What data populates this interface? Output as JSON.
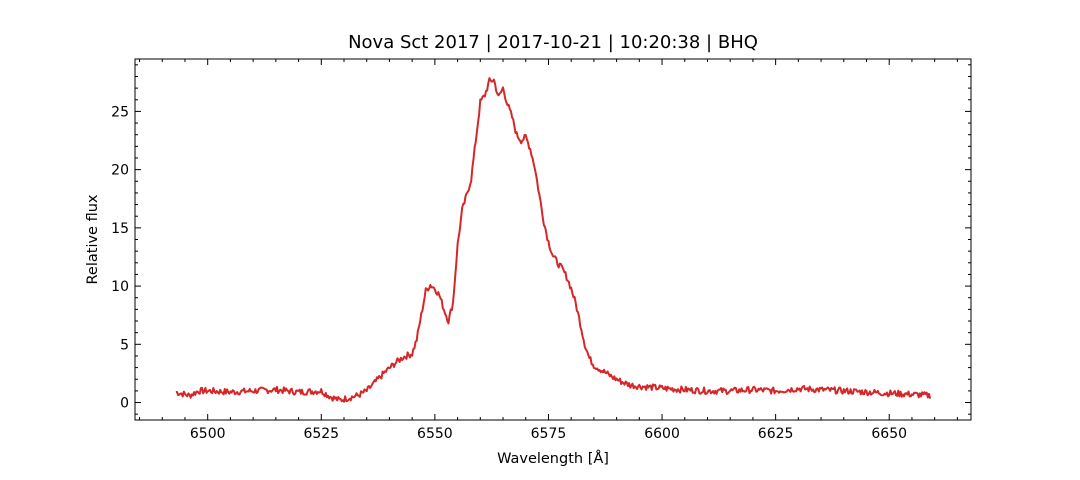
{
  "chart_data": {
    "type": "line",
    "title": "Nova Sct 2017 | 2017-10-21 | 10:20:38 | BHQ",
    "xlabel": "Wavelength [Å]",
    "ylabel": "Relative flux",
    "xlim": [
      6484,
      6668
    ],
    "ylim": [
      -1.5,
      29.5
    ],
    "xticks": [
      6500,
      6525,
      6550,
      6575,
      6600,
      6625,
      6650
    ],
    "yticks": [
      0,
      5,
      10,
      15,
      20,
      25
    ],
    "grid": false,
    "legend": "none",
    "series": [
      {
        "color": "#d62728",
        "x": [
          6493.0,
          6496,
          6498,
          6500,
          6505,
          6510,
          6515,
          6520,
          6525,
          6527,
          6529,
          6531,
          6533,
          6535,
          6537,
          6539,
          6541,
          6543,
          6545,
          6546,
          6547,
          6548,
          6549,
          6550,
          6551,
          6552,
          6553,
          6554,
          6555,
          6556,
          6557,
          6558,
          6559,
          6560,
          6561,
          6562,
          6563,
          6564,
          6565,
          6566,
          6567,
          6568,
          6569,
          6570,
          6571,
          6572,
          6573,
          6574,
          6575,
          6576,
          6577,
          6578,
          6579,
          6580,
          6581,
          6582,
          6583,
          6584,
          6585,
          6587,
          6589,
          6591,
          6593,
          6595,
          6598,
          6601,
          6605,
          6610,
          6615,
          6620,
          6625,
          6630,
          6635,
          6640,
          6645,
          6650,
          6655,
          6659
        ],
        "values": [
          0.9,
          0.6,
          1.0,
          1.0,
          0.9,
          1.0,
          1.1,
          0.9,
          1.0,
          0.5,
          0.2,
          0.4,
          0.6,
          1.0,
          1.8,
          2.6,
          3.3,
          3.9,
          4.2,
          5.4,
          7.5,
          9.6,
          10.1,
          9.8,
          9.2,
          8.0,
          7.0,
          8.6,
          13.5,
          16.5,
          17.8,
          19.2,
          22.5,
          25.8,
          26.4,
          27.6,
          27.7,
          26.2,
          27.0,
          25.6,
          24.5,
          23.0,
          22.5,
          22.8,
          21.8,
          20.2,
          17.8,
          15.5,
          13.8,
          12.6,
          12.0,
          11.5,
          10.8,
          9.8,
          8.5,
          6.8,
          5.0,
          3.8,
          3.2,
          2.7,
          2.2,
          1.8,
          1.5,
          1.4,
          1.3,
          1.2,
          1.1,
          1.0,
          1.0,
          1.1,
          1.0,
          1.2,
          1.1,
          1.0,
          0.9,
          0.8,
          0.7,
          0.6
        ]
      }
    ]
  }
}
